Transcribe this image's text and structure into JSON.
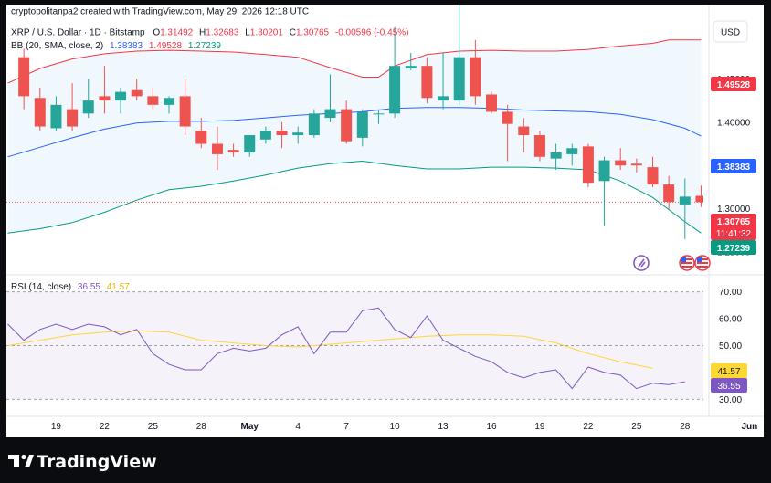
{
  "header": {
    "attribution": "cryptopolitanpa2 created with TradingView.com, May 29, 2026 12:18 UTC"
  },
  "legend": {
    "symbol": "XRP / U.S. Dollar · 1D · Bitstamp",
    "o_label": "O",
    "o_value": "1.31492",
    "h_label": "H",
    "h_value": "1.32683",
    "l_label": "L",
    "l_value": "1.30201",
    "c_label": "C",
    "c_value": "1.30765",
    "change": "-0.00596 (-0.45%)",
    "bb_label": "BB (20, SMA, close, 2)",
    "bb_basis": "1.38383",
    "bb_upper": "1.49528",
    "bb_lower": "1.27239"
  },
  "currency_button": "USD",
  "rsi_legend": {
    "label": "RSI (14, close)",
    "rsi_value": "36.55",
    "ma_value": "41.57"
  },
  "price_badges": {
    "upper": "1.49528",
    "basis": "1.38383",
    "last": "1.30765",
    "countdown": "11:41:32",
    "lower": "1.27239"
  },
  "rsi_badges": {
    "ma": "41.57",
    "rsi": "36.55"
  },
  "brand": {
    "name": "TradingView"
  },
  "colors": {
    "up": "#26a69a",
    "down": "#ef5350",
    "upper_band": "#f23645",
    "basis": "#2962ff",
    "lower_band": "#089981",
    "band_fill": "#e3f2fd",
    "rsi_line": "#7e57c2",
    "rsi_ma": "#fdd835",
    "rsi_fill": "#ede7f6"
  },
  "chart_data": {
    "type": "candlestick",
    "price_axis": {
      "ylim": [
        1.229,
        1.52
      ],
      "ticks": [
        "1.25000",
        "1.30000",
        "1.35000",
        "1.40000",
        "1.45000",
        "1.50000"
      ]
    },
    "x_axis": {
      "ticks": [
        {
          "label": "19",
          "day": 19
        },
        {
          "label": "22",
          "day": 22
        },
        {
          "label": "25",
          "day": 25
        },
        {
          "label": "28",
          "day": 28
        },
        {
          "label": "May",
          "day": 31
        },
        {
          "label": "4",
          "day": 34
        },
        {
          "label": "7",
          "day": 37
        },
        {
          "label": "10",
          "day": 40
        },
        {
          "label": "13",
          "day": 43
        },
        {
          "label": "16",
          "day": 46
        },
        {
          "label": "19",
          "day": 49
        },
        {
          "label": "22",
          "day": 52
        },
        {
          "label": "25",
          "day": 55
        },
        {
          "label": "28",
          "day": 58
        },
        {
          "label": "Jun",
          "day": 62
        }
      ]
    },
    "candles": [
      {
        "day": 17,
        "o": 1.475,
        "h": 1.485,
        "l": 1.415,
        "c": 1.43
      },
      {
        "day": 18,
        "o": 1.428,
        "h": 1.44,
        "l": 1.39,
        "c": 1.395
      },
      {
        "day": 19,
        "o": 1.393,
        "h": 1.43,
        "l": 1.39,
        "c": 1.42
      },
      {
        "day": 20,
        "o": 1.415,
        "h": 1.445,
        "l": 1.39,
        "c": 1.395
      },
      {
        "day": 21,
        "o": 1.41,
        "h": 1.45,
        "l": 1.405,
        "c": 1.425
      },
      {
        "day": 22,
        "o": 1.43,
        "h": 1.465,
        "l": 1.41,
        "c": 1.425
      },
      {
        "day": 23,
        "o": 1.425,
        "h": 1.44,
        "l": 1.41,
        "c": 1.435
      },
      {
        "day": 24,
        "o": 1.437,
        "h": 1.45,
        "l": 1.425,
        "c": 1.43
      },
      {
        "day": 25,
        "o": 1.43,
        "h": 1.44,
        "l": 1.415,
        "c": 1.42
      },
      {
        "day": 26,
        "o": 1.42,
        "h": 1.43,
        "l": 1.41,
        "c": 1.428
      },
      {
        "day": 27,
        "o": 1.43,
        "h": 1.45,
        "l": 1.385,
        "c": 1.395
      },
      {
        "day": 28,
        "o": 1.39,
        "h": 1.405,
        "l": 1.37,
        "c": 1.375
      },
      {
        "day": 29,
        "o": 1.375,
        "h": 1.395,
        "l": 1.345,
        "c": 1.363
      },
      {
        "day": 30,
        "o": 1.368,
        "h": 1.375,
        "l": 1.36,
        "c": 1.365
      },
      {
        "day": 31,
        "o": 1.365,
        "h": 1.385,
        "l": 1.36,
        "c": 1.385
      },
      {
        "day": 32,
        "o": 1.38,
        "h": 1.395,
        "l": 1.375,
        "c": 1.39
      },
      {
        "day": 33,
        "o": 1.39,
        "h": 1.4,
        "l": 1.37,
        "c": 1.385
      },
      {
        "day": 34,
        "o": 1.385,
        "h": 1.395,
        "l": 1.375,
        "c": 1.388
      },
      {
        "day": 35,
        "o": 1.385,
        "h": 1.415,
        "l": 1.382,
        "c": 1.41
      },
      {
        "day": 36,
        "o": 1.405,
        "h": 1.455,
        "l": 1.4,
        "c": 1.415
      },
      {
        "day": 37,
        "o": 1.415,
        "h": 1.425,
        "l": 1.375,
        "c": 1.378
      },
      {
        "day": 38,
        "o": 1.382,
        "h": 1.415,
        "l": 1.372,
        "c": 1.412
      },
      {
        "day": 39,
        "o": 1.41,
        "h": 1.415,
        "l": 1.398,
        "c": 1.41
      },
      {
        "day": 40,
        "o": 1.41,
        "h": 1.51,
        "l": 1.405,
        "c": 1.465
      },
      {
        "day": 41,
        "o": 1.462,
        "h": 1.48,
        "l": 1.46,
        "c": 1.465
      },
      {
        "day": 42,
        "o": 1.465,
        "h": 1.475,
        "l": 1.422,
        "c": 1.428
      },
      {
        "day": 43,
        "o": 1.425,
        "h": 1.48,
        "l": 1.415,
        "c": 1.43
      },
      {
        "day": 44,
        "o": 1.425,
        "h": 1.55,
        "l": 1.42,
        "c": 1.475
      },
      {
        "day": 45,
        "o": 1.475,
        "h": 1.495,
        "l": 1.42,
        "c": 1.43
      },
      {
        "day": 46,
        "o": 1.432,
        "h": 1.435,
        "l": 1.41,
        "c": 1.412
      },
      {
        "day": 47,
        "o": 1.412,
        "h": 1.42,
        "l": 1.355,
        "c": 1.398
      },
      {
        "day": 48,
        "o": 1.395,
        "h": 1.405,
        "l": 1.365,
        "c": 1.385
      },
      {
        "day": 49,
        "o": 1.385,
        "h": 1.39,
        "l": 1.355,
        "c": 1.36
      },
      {
        "day": 50,
        "o": 1.358,
        "h": 1.375,
        "l": 1.345,
        "c": 1.365
      },
      {
        "day": 51,
        "o": 1.363,
        "h": 1.375,
        "l": 1.35,
        "c": 1.37
      },
      {
        "day": 52,
        "o": 1.372,
        "h": 1.375,
        "l": 1.325,
        "c": 1.33
      },
      {
        "day": 53,
        "o": 1.332,
        "h": 1.36,
        "l": 1.28,
        "c": 1.356
      },
      {
        "day": 54,
        "o": 1.356,
        "h": 1.37,
        "l": 1.345,
        "c": 1.35
      },
      {
        "day": 55,
        "o": 1.352,
        "h": 1.358,
        "l": 1.342,
        "c": 1.35
      },
      {
        "day": 56,
        "o": 1.348,
        "h": 1.36,
        "l": 1.325,
        "c": 1.328
      },
      {
        "day": 57,
        "o": 1.328,
        "h": 1.338,
        "l": 1.3,
        "c": 1.308
      },
      {
        "day": 58,
        "o": 1.305,
        "h": 1.335,
        "l": 1.265,
        "c": 1.314
      },
      {
        "day": 59,
        "o": 1.3149,
        "h": 1.3268,
        "l": 1.302,
        "c": 1.30765
      }
    ],
    "bollinger": {
      "upper": [
        [
          16,
          1.445
        ],
        [
          18,
          1.462
        ],
        [
          20,
          1.473
        ],
        [
          22,
          1.479
        ],
        [
          24,
          1.482
        ],
        [
          26,
          1.483
        ],
        [
          28,
          1.482
        ],
        [
          30,
          1.481
        ],
        [
          32,
          1.478
        ],
        [
          34,
          1.475
        ],
        [
          36,
          1.463
        ],
        [
          38,
          1.452
        ],
        [
          39,
          1.452
        ],
        [
          40,
          1.465
        ],
        [
          42,
          1.478
        ],
        [
          44,
          1.482
        ],
        [
          46,
          1.483
        ],
        [
          48,
          1.482
        ],
        [
          50,
          1.482
        ],
        [
          52,
          1.484
        ],
        [
          54,
          1.488
        ],
        [
          56,
          1.491
        ],
        [
          57,
          1.495
        ],
        [
          59,
          1.495
        ]
      ],
      "basis": [
        [
          16,
          1.36
        ],
        [
          18,
          1.371
        ],
        [
          20,
          1.382
        ],
        [
          22,
          1.392
        ],
        [
          24,
          1.399
        ],
        [
          26,
          1.401
        ],
        [
          28,
          1.401
        ],
        [
          30,
          1.402
        ],
        [
          32,
          1.405
        ],
        [
          34,
          1.408
        ],
        [
          36,
          1.41
        ],
        [
          38,
          1.412
        ],
        [
          40,
          1.416
        ],
        [
          42,
          1.417
        ],
        [
          44,
          1.417
        ],
        [
          46,
          1.416
        ],
        [
          48,
          1.414
        ],
        [
          50,
          1.413
        ],
        [
          52,
          1.412
        ],
        [
          54,
          1.409
        ],
        [
          56,
          1.403
        ],
        [
          58,
          1.393
        ],
        [
          59,
          1.384
        ]
      ],
      "lower": [
        [
          16,
          1.272
        ],
        [
          18,
          1.277
        ],
        [
          20,
          1.284
        ],
        [
          22,
          1.296
        ],
        [
          24,
          1.31
        ],
        [
          26,
          1.322
        ],
        [
          28,
          1.326
        ],
        [
          30,
          1.332
        ],
        [
          32,
          1.339
        ],
        [
          34,
          1.347
        ],
        [
          36,
          1.352
        ],
        [
          38,
          1.355
        ],
        [
          40,
          1.35
        ],
        [
          42,
          1.346
        ],
        [
          44,
          1.346
        ],
        [
          46,
          1.348
        ],
        [
          48,
          1.348
        ],
        [
          50,
          1.347
        ],
        [
          52,
          1.345
        ],
        [
          54,
          1.332
        ],
        [
          56,
          1.313
        ],
        [
          58,
          1.285
        ],
        [
          59,
          1.272
        ]
      ]
    },
    "rsi_axis": {
      "ylim": [
        24,
        76
      ],
      "ticks": [
        "30.00",
        "50.00",
        "60.00",
        "70.00"
      ],
      "band": [
        30,
        70
      ]
    },
    "rsi": [
      [
        16,
        58
      ],
      [
        17,
        52
      ],
      [
        18,
        56
      ],
      [
        19,
        58
      ],
      [
        20,
        56
      ],
      [
        21,
        58
      ],
      [
        22,
        57
      ],
      [
        23,
        54
      ],
      [
        24,
        56
      ],
      [
        25,
        47
      ],
      [
        26,
        43
      ],
      [
        27,
        41
      ],
      [
        28,
        41
      ],
      [
        29,
        47
      ],
      [
        30,
        49
      ],
      [
        31,
        48
      ],
      [
        32,
        49
      ],
      [
        33,
        54
      ],
      [
        34,
        57
      ],
      [
        35,
        47
      ],
      [
        36,
        55
      ],
      [
        37,
        55
      ],
      [
        38,
        63
      ],
      [
        39,
        64
      ],
      [
        40,
        56
      ],
      [
        41,
        53
      ],
      [
        42,
        61
      ],
      [
        43,
        52
      ],
      [
        44,
        49
      ],
      [
        45,
        46
      ],
      [
        46,
        44
      ],
      [
        47,
        40
      ],
      [
        48,
        38
      ],
      [
        49,
        40
      ],
      [
        50,
        41
      ],
      [
        51,
        34
      ],
      [
        52,
        42
      ],
      [
        53,
        40
      ],
      [
        54,
        39
      ],
      [
        55,
        34
      ],
      [
        56,
        36
      ],
      [
        57,
        35.5
      ],
      [
        58,
        36.55
      ]
    ],
    "rsi_ma": [
      [
        16,
        50
      ],
      [
        18,
        52
      ],
      [
        20,
        54
      ],
      [
        22,
        55
      ],
      [
        24,
        55.5
      ],
      [
        26,
        55
      ],
      [
        28,
        52
      ],
      [
        30,
        51
      ],
      [
        32,
        50
      ],
      [
        34,
        49.5
      ],
      [
        36,
        50.5
      ],
      [
        38,
        51.5
      ],
      [
        40,
        52.5
      ],
      [
        42,
        53.5
      ],
      [
        44,
        54
      ],
      [
        46,
        54
      ],
      [
        48,
        53.5
      ],
      [
        50,
        51
      ],
      [
        52,
        47
      ],
      [
        54,
        44
      ],
      [
        56,
        41.57
      ]
    ]
  }
}
